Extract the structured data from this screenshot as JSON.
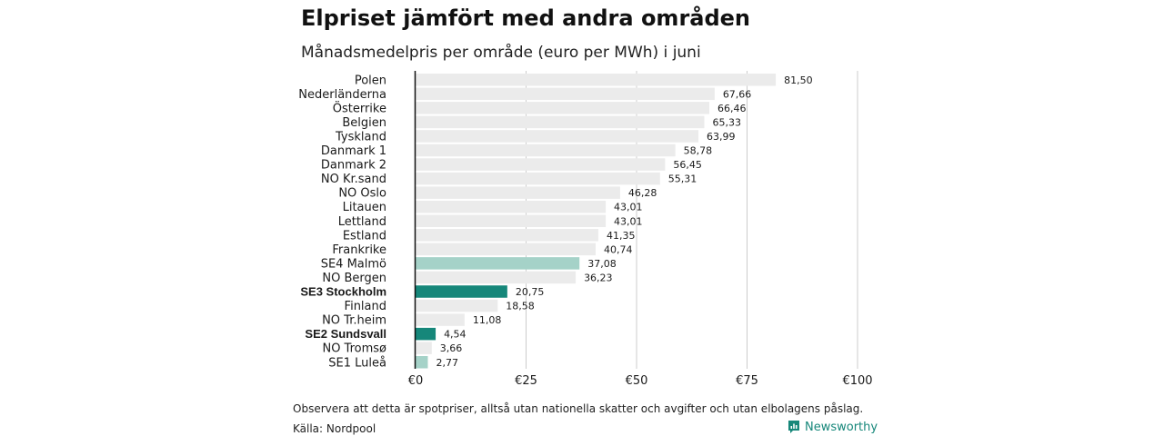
{
  "title": "Elpriset jämfört med andra områden",
  "subtitle": "Månadsmedelpris per område (euro per MWh) i juni",
  "footnote": "Observera att detta är spotpriser, alltså utan nationella skatter och avgifter och utan elbolagens påslag.",
  "source": "Källa: Nordpool",
  "brand": {
    "name": "Newsworthy",
    "icon": "newsworthy-logo-icon",
    "color": "#16877a"
  },
  "colors": {
    "default": "#ebebeb",
    "highlight": "#16877a",
    "light_highlight": "#a5d2c8",
    "axis": "#111111",
    "grid": "#cccccc"
  },
  "chart_data": {
    "type": "bar",
    "orientation": "horizontal",
    "categories": [
      "Polen",
      "Nederländerna",
      "Österrike",
      "Belgien",
      "Tyskland",
      "Danmark 1",
      "Danmark 2",
      "NO Kr.sand",
      "NO Oslo",
      "Litauen",
      "Lettland",
      "Estland",
      "Frankrike",
      "SE4 Malmö",
      "NO Bergen",
      "SE3 Stockholm",
      "Finland",
      "NO Tr.heim",
      "SE2 Sundsvall",
      "NO Tromsø",
      "SE1 Luleå"
    ],
    "values": [
      81.5,
      67.66,
      66.46,
      65.33,
      63.99,
      58.78,
      56.45,
      55.31,
      46.28,
      43.01,
      43.01,
      41.35,
      40.74,
      37.08,
      36.23,
      20.75,
      18.58,
      11.08,
      4.54,
      3.66,
      2.77
    ],
    "value_labels": [
      "81,50",
      "67,66",
      "66,46",
      "65,33",
      "63,99",
      "58,78",
      "56,45",
      "55,31",
      "46,28",
      "43,01",
      "43,01",
      "41,35",
      "40,74",
      "37,08",
      "36,23",
      "20,75",
      "18,58",
      "11,08",
      "4,54",
      "3,66",
      "2,77"
    ],
    "bar_colors": [
      "default",
      "default",
      "default",
      "default",
      "default",
      "default",
      "default",
      "default",
      "default",
      "default",
      "default",
      "default",
      "default",
      "light_highlight",
      "default",
      "highlight",
      "default",
      "default",
      "highlight",
      "default",
      "light_highlight"
    ],
    "bold_categories": [
      "SE3 Stockholm",
      "SE2 Sundsvall"
    ],
    "xlim": [
      0,
      100
    ],
    "xticks": [
      0,
      25,
      50,
      75,
      100
    ],
    "xtick_labels": [
      "€0",
      "€25",
      "€50",
      "€75",
      "€100"
    ],
    "grid": true
  }
}
